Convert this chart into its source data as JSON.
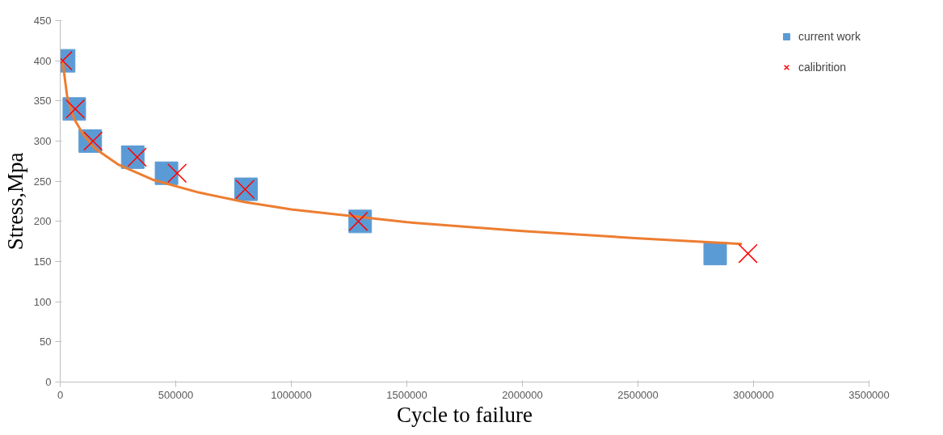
{
  "chart_data": {
    "type": "scatter",
    "xlabel": "Cycle to failure",
    "ylabel": "Stress,Mpa",
    "xlim": [
      0,
      3500000
    ],
    "xticks": [
      0,
      500000,
      1000000,
      1500000,
      2000000,
      2500000,
      3000000,
      3500000
    ],
    "ylim": [
      0,
      450
    ],
    "yticks": [
      0,
      50,
      100,
      150,
      200,
      250,
      300,
      350,
      400,
      450
    ],
    "grid": false,
    "legend": "top right",
    "series": [
      {
        "name": "current work",
        "marker": "square",
        "color": "#5b9bd5",
        "x": [
          15000,
          61000,
          130000,
          314000,
          460000,
          804000,
          1298000,
          2834000
        ],
        "values": [
          400,
          340,
          300,
          280,
          260,
          240,
          200,
          160
        ]
      },
      {
        "type": "line",
        "marker": "none",
        "color": "#ed7d31",
        "x": [
          10000,
          30000,
          60000,
          100000,
          150000,
          250000,
          400000,
          600000,
          800000,
          1000000,
          1500000,
          2000000,
          2500000,
          2950000
        ],
        "values": [
          400,
          356,
          328,
          308,
          291,
          271,
          252,
          236,
          224,
          215,
          199,
          188,
          179,
          172
        ]
      },
      {
        "name": "calibrition",
        "marker": "cross",
        "color": "#ff0000",
        "x": [
          11000,
          65000,
          142000,
          333000,
          506000,
          800000,
          1290000,
          2976000
        ],
        "values": [
          400,
          340,
          300,
          280,
          260,
          240,
          200,
          160
        ]
      }
    ]
  }
}
